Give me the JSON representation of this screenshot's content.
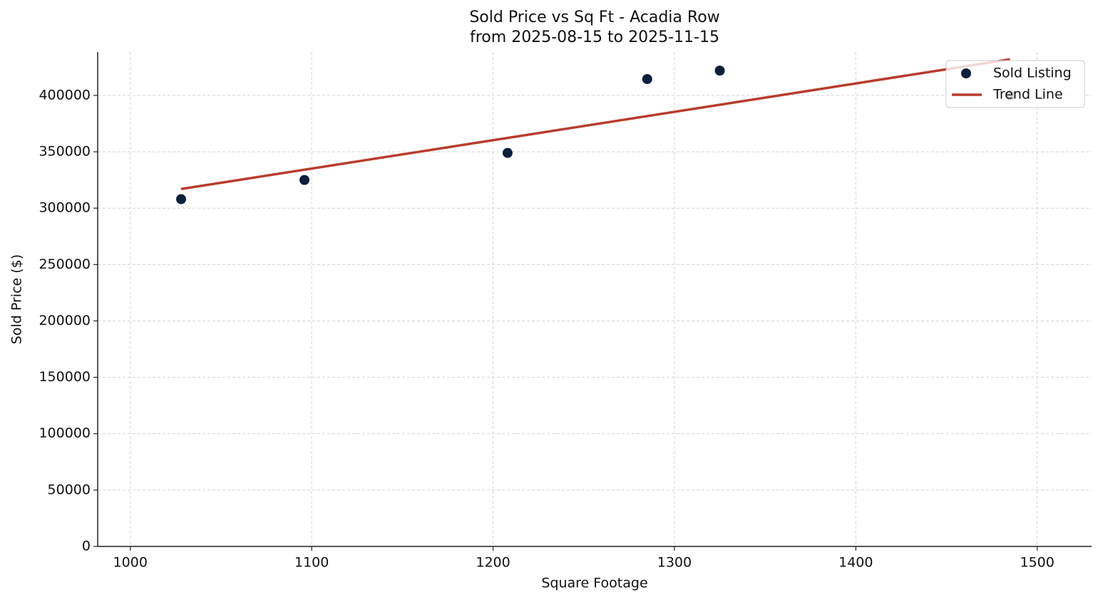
{
  "chart_data": {
    "type": "scatter",
    "title": "Sold Price vs Sq Ft - Acadia Row",
    "subtitle": "from 2025-08-15 to 2025-11-15",
    "x_label": "Square Footage",
    "y_label": "Sold Price ($)",
    "xlim": [
      982,
      1530
    ],
    "xticks": [
      1000,
      1100,
      1200,
      1300,
      1400,
      1500
    ],
    "ylim": [
      0,
      438500
    ],
    "yticks": [
      0,
      50000,
      100000,
      150000,
      200000,
      250000,
      300000,
      350000,
      400000
    ],
    "grid": true,
    "legend": "upper right",
    "series": [
      {
        "name": "Sold Listing",
        "type": "scatter",
        "color": "#0d1f3c",
        "x": [
          1028,
          1096,
          1208,
          1285,
          1325,
          1485
        ],
        "values": [
          308000,
          325000,
          349000,
          414500,
          422000,
          400000
        ]
      },
      {
        "name": "Trend Line",
        "type": "line",
        "color": "#b83c2e",
        "x": [
          1028,
          1485
        ],
        "values": [
          317000,
          432000
        ]
      }
    ]
  }
}
